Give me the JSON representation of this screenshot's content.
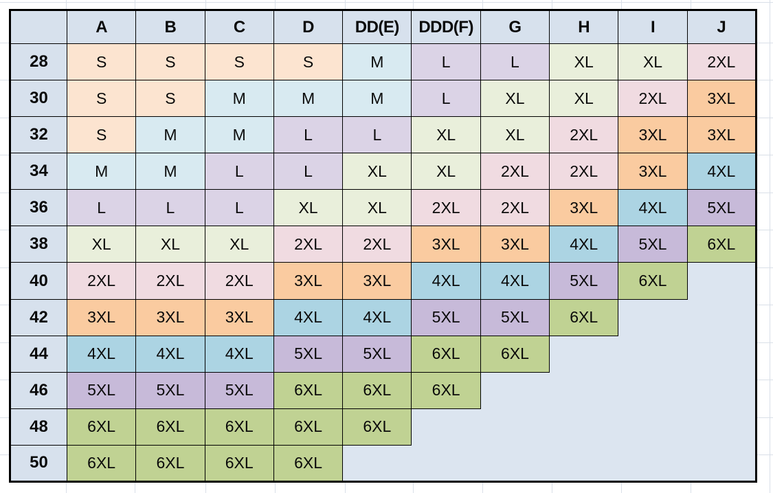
{
  "table": {
    "corner_label": "",
    "columns": [
      "A",
      "B",
      "C",
      "D",
      "DD(E)",
      "DDD(F)",
      "G",
      "H",
      "I",
      "J"
    ],
    "rows": [
      {
        "band": "28",
        "cells": [
          "S",
          "S",
          "S",
          "S",
          "M",
          "L",
          "L",
          "XL",
          "XL",
          "2XL"
        ]
      },
      {
        "band": "30",
        "cells": [
          "S",
          "S",
          "M",
          "M",
          "M",
          "L",
          "XL",
          "XL",
          "2XL",
          "3XL"
        ]
      },
      {
        "band": "32",
        "cells": [
          "S",
          "M",
          "M",
          "L",
          "L",
          "XL",
          "XL",
          "2XL",
          "3XL",
          "3XL"
        ]
      },
      {
        "band": "34",
        "cells": [
          "M",
          "M",
          "L",
          "L",
          "XL",
          "XL",
          "2XL",
          "2XL",
          "3XL",
          "4XL"
        ]
      },
      {
        "band": "36",
        "cells": [
          "L",
          "L",
          "L",
          "XL",
          "XL",
          "2XL",
          "2XL",
          "3XL",
          "4XL",
          "5XL"
        ]
      },
      {
        "band": "38",
        "cells": [
          "XL",
          "XL",
          "XL",
          "2XL",
          "2XL",
          "3XL",
          "3XL",
          "4XL",
          "5XL",
          "6XL"
        ]
      },
      {
        "band": "40",
        "cells": [
          "2XL",
          "2XL",
          "2XL",
          "3XL",
          "3XL",
          "4XL",
          "4XL",
          "5XL",
          "6XL",
          ""
        ]
      },
      {
        "band": "42",
        "cells": [
          "3XL",
          "3XL",
          "3XL",
          "4XL",
          "4XL",
          "5XL",
          "5XL",
          "6XL",
          "",
          ""
        ]
      },
      {
        "band": "44",
        "cells": [
          "4XL",
          "4XL",
          "4XL",
          "5XL",
          "5XL",
          "6XL",
          "6XL",
          "",
          "",
          ""
        ]
      },
      {
        "band": "46",
        "cells": [
          "5XL",
          "5XL",
          "5XL",
          "6XL",
          "6XL",
          "6XL",
          "",
          "",
          "",
          ""
        ]
      },
      {
        "band": "48",
        "cells": [
          "6XL",
          "6XL",
          "6XL",
          "6XL",
          "6XL",
          "",
          "",
          "",
          "",
          ""
        ]
      },
      {
        "band": "50",
        "cells": [
          "6XL",
          "6XL",
          "6XL",
          "6XL",
          "",
          "",
          "",
          "",
          "",
          ""
        ]
      }
    ]
  },
  "size_colors": {
    "S": "#FCE4D0",
    "M": "#D8EAF1",
    "L": "#DBD3E6",
    "XL": "#E9EFDB",
    "2XL": "#F0DBE1",
    "3XL": "#FACBA0",
    "4XL": "#ACD4E3",
    "5XL": "#C7BAD9",
    "6XL": "#C0D293"
  },
  "colors": {
    "page_bg": "#FFFFFF",
    "header_bg": "#D7E1ED",
    "empty_bg": "#DCE5F0",
    "border": "#000000",
    "gridline": "#D9DFE8",
    "text": "#0A0A0A"
  }
}
